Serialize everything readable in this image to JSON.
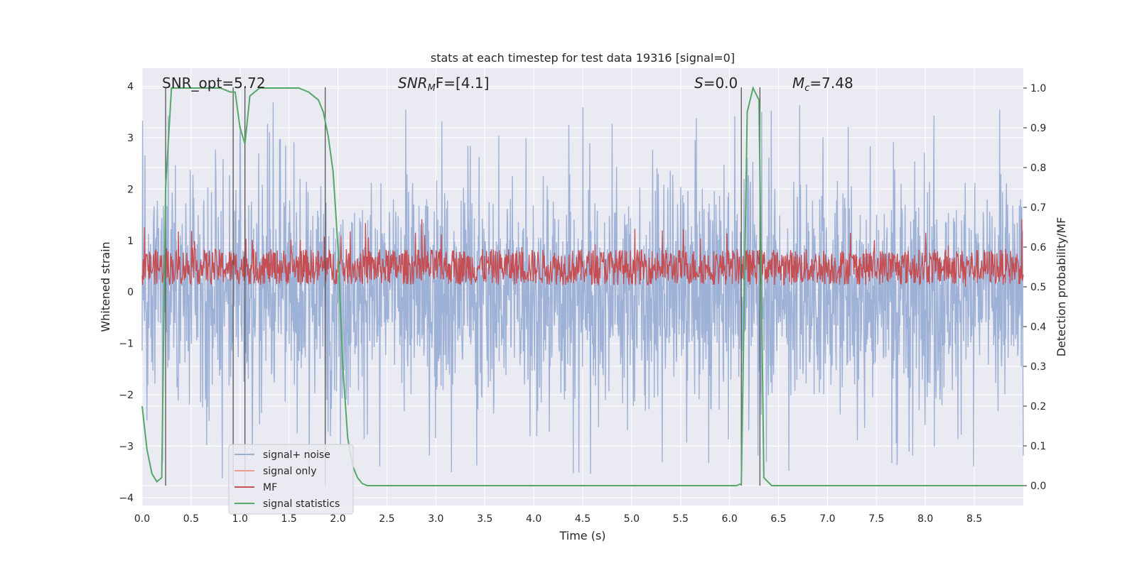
{
  "chart_data": {
    "type": "line",
    "title": "stats at each timestep for test data 19316 [signal=0]",
    "xlabel": "Time (s)",
    "ylabel_left": "Whitened strain",
    "ylabel_right": "Detection probability/MF",
    "xlim": [
      0.0,
      9.0
    ],
    "ylim_left": [
      -4.15,
      4.35
    ],
    "ylim_right": [
      -0.05,
      1.05
    ],
    "x_ticks": [
      "0.0",
      "0.5",
      "1.0",
      "1.5",
      "2.0",
      "2.5",
      "3.0",
      "3.5",
      "4.0",
      "4.5",
      "5.0",
      "5.5",
      "6.0",
      "6.5",
      "7.0",
      "7.5",
      "8.0",
      "8.5"
    ],
    "y_left_ticks": [
      "4",
      "3",
      "2",
      "1",
      "0",
      "−1",
      "−2",
      "−3",
      "−4"
    ],
    "y_right_ticks": [
      "1.0",
      "0.9",
      "0.8",
      "0.7",
      "0.6",
      "0.5",
      "0.4",
      "0.3",
      "0.2",
      "0.1",
      "0.0"
    ],
    "grid": true,
    "legend_position": "lower-left",
    "colors": {
      "background": "#eaeaf2",
      "grid": "#ffffff",
      "noise": "#9aaed4",
      "signal_only": "#e8a08a",
      "mf": "#c44e52",
      "statistics": "#55a868",
      "vlines": "#555555"
    },
    "annotations": {
      "snr_opt": "SNR_opt=5.72",
      "snr_mf_prefix": "SNR",
      "snr_mf_sub": "M",
      "snr_mf_suffix": "F=[4.1]",
      "s_italic": "S",
      "s_value": "=0.0",
      "mc_italic": "M",
      "mc_sub": "c",
      "mc_value": "=7.48"
    },
    "vertical_lines_x": [
      0.24,
      0.93,
      1.05,
      1.87,
      6.12,
      6.31
    ],
    "series": [
      {
        "name": "signal+ noise",
        "axis": "left",
        "envelope_note": "dense noise, amplitude ~1.5, spikes up to ~3.8"
      },
      {
        "name": "signal only",
        "axis": "left",
        "values": []
      },
      {
        "name": "MF",
        "axis": "right",
        "baseline_range": [
          0.5,
          0.6
        ]
      },
      {
        "name": "signal statistics",
        "axis": "right",
        "x": [
          0.0,
          0.05,
          0.1,
          0.15,
          0.2,
          0.24,
          0.3,
          0.4,
          0.5,
          0.6,
          0.7,
          0.8,
          0.9,
          0.95,
          1.0,
          1.05,
          1.1,
          1.2,
          1.3,
          1.4,
          1.5,
          1.6,
          1.7,
          1.75,
          1.8,
          1.85,
          1.9,
          1.95,
          2.0,
          2.05,
          2.1,
          2.15,
          2.2,
          2.25,
          2.3,
          2.35,
          2.4,
          3.0,
          4.0,
          5.0,
          5.5,
          6.0,
          6.07,
          6.12,
          6.18,
          6.24,
          6.3,
          6.35,
          6.43,
          6.5,
          7.0,
          8.0,
          8.5,
          9.0
        ],
        "values": [
          0.2,
          0.09,
          0.03,
          0.01,
          0.02,
          0.75,
          1.0,
          1.0,
          1.0,
          1.0,
          1.0,
          1.0,
          0.99,
          0.99,
          0.9,
          0.86,
          0.98,
          1.0,
          1.0,
          1.0,
          1.0,
          1.0,
          0.99,
          0.98,
          0.97,
          0.94,
          0.88,
          0.79,
          0.6,
          0.3,
          0.12,
          0.05,
          0.02,
          0.005,
          0.0,
          0.0,
          0.0,
          0.0,
          0.0,
          0.0,
          0.0,
          0.0,
          0.0,
          0.005,
          0.94,
          1.0,
          0.97,
          0.02,
          0.0,
          0.0,
          0.0,
          0.0,
          0.0,
          0.0
        ]
      }
    ]
  }
}
